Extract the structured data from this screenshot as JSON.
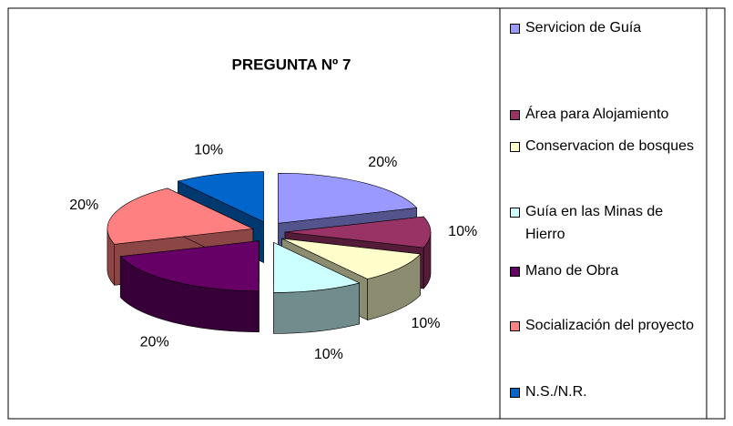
{
  "chart_data": {
    "type": "pie",
    "title": "PREGUNTA Nº 7",
    "categories": [
      "Servicion de Guía",
      "Área para Alojamiento",
      "Conservacion de bosques",
      "Guía en las Minas de Hierro",
      "Mano de Obra",
      "Socialización del proyecto",
      "N.S./N.R."
    ],
    "values": [
      20,
      10,
      10,
      10,
      20,
      20,
      10
    ],
    "value_labels": [
      "20%",
      "10%",
      "10%",
      "10%",
      "20%",
      "20%",
      "10%"
    ],
    "colors": [
      "#9999ff",
      "#993366",
      "#ffffcc",
      "#ccffff",
      "#660066",
      "#ff8080",
      "#0066cc"
    ],
    "legend": "right"
  }
}
